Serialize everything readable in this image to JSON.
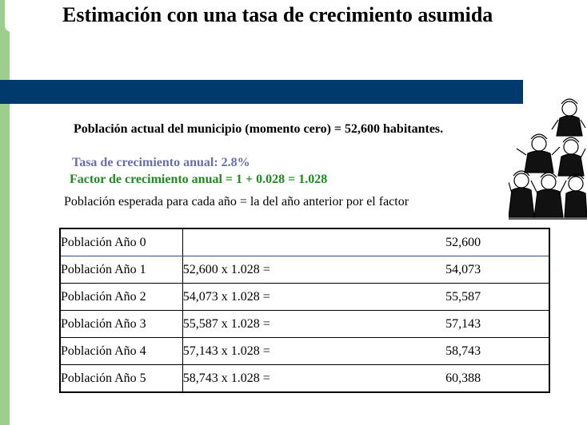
{
  "title": "Estimación con una tasa de crecimiento asumida",
  "current_population_line": "Población actual del municipio (momento cero) = 52,600 habitantes.",
  "growth_rate_line": "Tasa de crecimiento anual: 2.8%",
  "growth_factor_line": "Factor de crecimiento anual  = 1 + 0.028 = 1.028",
  "expected_population_line": "Población esperada para cada año =  la del año anterior por el  factor",
  "colors": {
    "green_bar": "#9ccf8e",
    "blue_band": "#003a6c",
    "rate_text": "#6b6ea8",
    "factor_text": "#1f8a1f"
  },
  "illustration": "crowd-of-people-clipart",
  "table": {
    "rows": [
      {
        "label": "Población Año 0",
        "calc": "",
        "value": "52,600"
      },
      {
        "label": "Población Año 1",
        "calc": "52,600 x 1.028 =",
        "value": "54,073"
      },
      {
        "label": "Población Año 2",
        "calc": "54,073 x 1.028 =",
        "value": "55,587"
      },
      {
        "label": "Población Año 3",
        "calc": "55,587 x 1.028 =",
        "value": "57,143"
      },
      {
        "label": "Población Año 4",
        "calc": "57,143 x 1.028 =",
        "value": "58,743"
      },
      {
        "label": "Población Año 5",
        "calc": "58,743 x 1.028 =",
        "value": "60,388"
      }
    ]
  }
}
